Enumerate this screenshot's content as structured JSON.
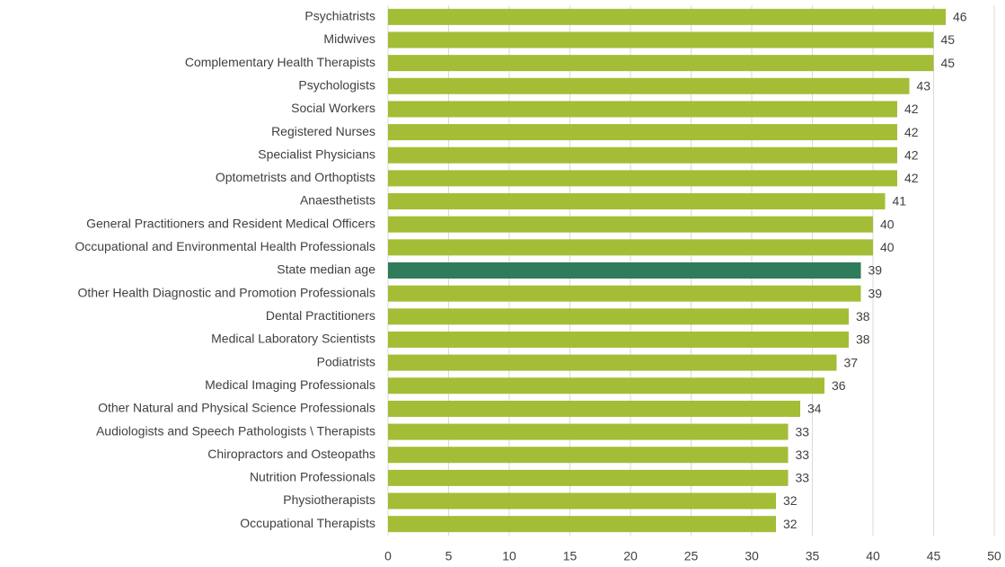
{
  "chart_data": {
    "type": "bar",
    "orientation": "horizontal",
    "categories": [
      "Psychiatrists",
      "Midwives",
      "Complementary Health Therapists",
      "Psychologists",
      "Social Workers",
      "Registered Nurses",
      "Specialist Physicians",
      "Optometrists and Orthoptists",
      "Anaesthetists",
      "General Practitioners and Resident Medical Officers",
      "Occupational and Environmental Health Professionals",
      "State median age",
      "Other Health Diagnostic and Promotion Professionals",
      "Dental Practitioners",
      "Medical Laboratory Scientists",
      "Podiatrists",
      "Medical Imaging Professionals",
      "Other Natural and Physical Science Professionals",
      "Audiologists and Speech Pathologists \\ Therapists",
      "Chiropractors and Osteopaths",
      "Nutrition Professionals",
      "Physiotherapists",
      "Occupational Therapists"
    ],
    "values": [
      46,
      45,
      45,
      43,
      42,
      42,
      42,
      42,
      41,
      40,
      40,
      39,
      39,
      38,
      38,
      37,
      36,
      34,
      33,
      33,
      33,
      32,
      32
    ],
    "colors": [
      "#a3bd36",
      "#a3bd36",
      "#a3bd36",
      "#a3bd36",
      "#a3bd36",
      "#a3bd36",
      "#a3bd36",
      "#a3bd36",
      "#a3bd36",
      "#a3bd36",
      "#a3bd36",
      "#2f7b5a",
      "#a3bd36",
      "#a3bd36",
      "#a3bd36",
      "#a3bd36",
      "#a3bd36",
      "#a3bd36",
      "#a3bd36",
      "#a3bd36",
      "#a3bd36",
      "#a3bd36",
      "#a3bd36"
    ],
    "xlim": [
      0,
      50
    ],
    "xticks": [
      0,
      5,
      10,
      15,
      20,
      25,
      30,
      35,
      40,
      45,
      50
    ],
    "grid": true
  }
}
